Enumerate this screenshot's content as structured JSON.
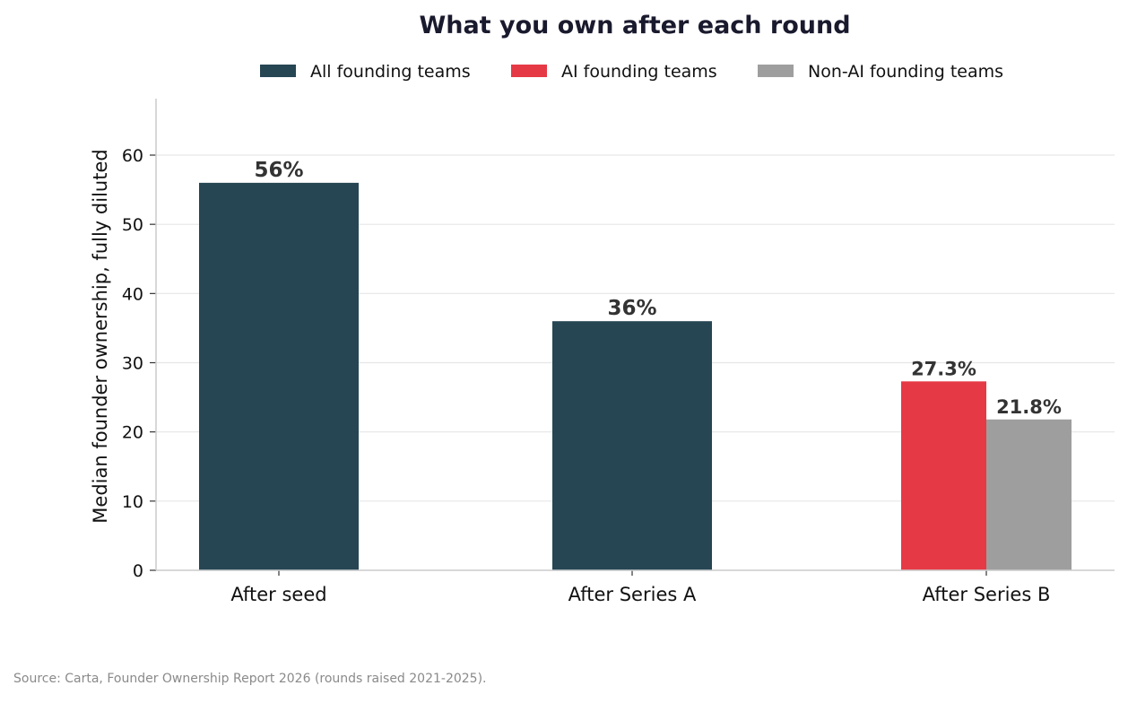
{
  "chart_data": {
    "type": "bar",
    "title": "What you own after each round",
    "ylabel": "Median founder ownership, fully diluted",
    "xlabel": "",
    "categories": [
      "After seed",
      "After Series A",
      "After Series B"
    ],
    "ylim": [
      0,
      68
    ],
    "yticks": [
      0,
      10,
      20,
      30,
      40,
      50,
      60
    ],
    "grid": "horizontal",
    "legend_position": "top-center",
    "series": [
      {
        "name": "All founding teams",
        "color": "#264653",
        "values": [
          56,
          36,
          null
        ],
        "labels": [
          "56%",
          "36%",
          ""
        ]
      },
      {
        "name": "AI founding teams",
        "color": "#e63946",
        "values": [
          null,
          null,
          27.3
        ],
        "labels": [
          "",
          "",
          "27.3%"
        ]
      },
      {
        "name": "Non-AI founding teams",
        "color": "#9e9e9e",
        "values": [
          null,
          null,
          21.8
        ],
        "labels": [
          "",
          "",
          "21.8%"
        ]
      }
    ]
  },
  "source": "Source: Carta, Founder Ownership Report 2026 (rounds raised 2021-2025)."
}
